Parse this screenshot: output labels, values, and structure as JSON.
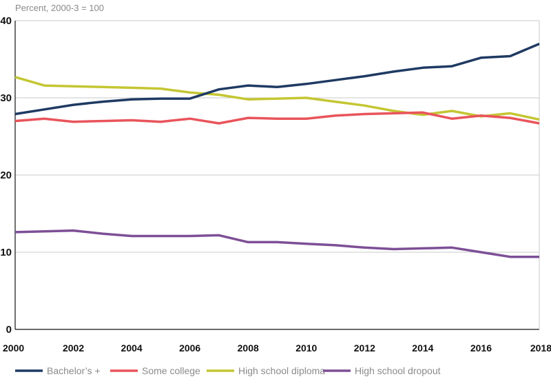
{
  "chart_data": {
    "type": "line",
    "ylabel": "Percent, 2000-3 = 100",
    "ylim": [
      0,
      40
    ],
    "yticks": [
      "0",
      "10",
      "20",
      "30",
      "40"
    ],
    "xlim": [
      2000,
      2018
    ],
    "xticks": [
      "2000",
      "2002",
      "2004",
      "2006",
      "2008",
      "2010",
      "2012",
      "2014",
      "2016",
      "2018"
    ],
    "grid": true,
    "legend_position": "bottom",
    "series": [
      {
        "name": "Bachelor’s +",
        "color": "#1f3a63",
        "x": [
          2000,
          2001,
          2002,
          2003,
          2004,
          2005,
          2006,
          2007,
          2008,
          2009,
          2010,
          2011,
          2012,
          2013,
          2014,
          2015,
          2016,
          2017,
          2018
        ],
        "values": [
          27.9,
          28.5,
          29.1,
          29.5,
          29.8,
          29.9,
          29.9,
          31.1,
          31.6,
          31.4,
          31.8,
          32.3,
          32.8,
          33.4,
          33.9,
          34.1,
          35.2,
          35.4,
          37.0
        ]
      },
      {
        "name": "Some college",
        "color": "#e9545b",
        "x": [
          2000,
          2001,
          2002,
          2003,
          2004,
          2005,
          2006,
          2007,
          2008,
          2009,
          2010,
          2011,
          2012,
          2013,
          2014,
          2015,
          2016,
          2017,
          2018
        ],
        "values": [
          27.0,
          27.3,
          26.9,
          27.0,
          27.1,
          26.9,
          27.3,
          26.7,
          27.4,
          27.3,
          27.3,
          27.7,
          27.9,
          28.0,
          28.1,
          27.3,
          27.7,
          27.4,
          26.7
        ]
      },
      {
        "name": "High school diploma",
        "color": "#c4c632",
        "x": [
          2000,
          2001,
          2002,
          2003,
          2004,
          2005,
          2006,
          2007,
          2008,
          2009,
          2010,
          2011,
          2012,
          2013,
          2014,
          2015,
          2016,
          2017,
          2018
        ],
        "values": [
          32.7,
          31.6,
          31.5,
          31.4,
          31.3,
          31.2,
          30.7,
          30.4,
          29.8,
          29.9,
          30.0,
          29.5,
          29.0,
          28.3,
          27.8,
          28.3,
          27.6,
          28.0,
          27.2
        ]
      },
      {
        "name": "High school dropout",
        "color": "#7d4f96",
        "x": [
          2000,
          2001,
          2002,
          2003,
          2004,
          2005,
          2006,
          2007,
          2008,
          2009,
          2010,
          2011,
          2012,
          2013,
          2014,
          2015,
          2016,
          2017,
          2018
        ],
        "values": [
          12.6,
          12.7,
          12.8,
          12.4,
          12.1,
          12.1,
          12.1,
          12.2,
          11.3,
          11.3,
          11.1,
          10.9,
          10.6,
          10.4,
          10.5,
          10.6,
          10.0,
          9.4,
          9.4
        ]
      }
    ]
  }
}
